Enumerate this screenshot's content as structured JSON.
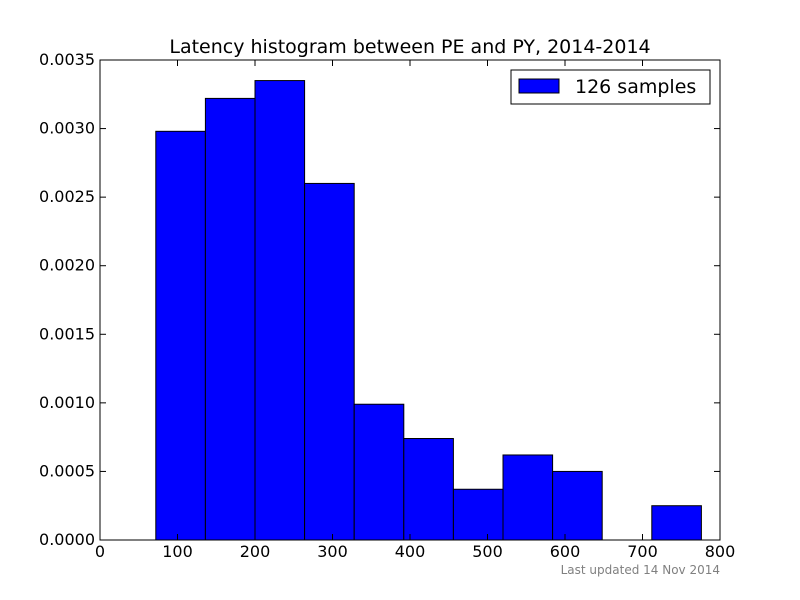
{
  "chart_data": {
    "type": "bar",
    "title": "Latency histogram between PE and PY, 2014-2014",
    "xlabel": "",
    "ylabel": "",
    "xlim": [
      0,
      800
    ],
    "ylim": [
      0,
      0.0035
    ],
    "x_ticks": [
      "0",
      "100",
      "200",
      "300",
      "400",
      "500",
      "600",
      "700",
      "800"
    ],
    "y_ticks": [
      "0.0000",
      "0.0005",
      "0.0010",
      "0.0015",
      "0.0020",
      "0.0025",
      "0.0030",
      "0.0035"
    ],
    "bins": [
      {
        "start": 72,
        "end": 136,
        "value": 0.00298
      },
      {
        "start": 136,
        "end": 200,
        "value": 0.00322
      },
      {
        "start": 200,
        "end": 264,
        "value": 0.00335
      },
      {
        "start": 264,
        "end": 328,
        "value": 0.0026
      },
      {
        "start": 328,
        "end": 392,
        "value": 0.00099
      },
      {
        "start": 392,
        "end": 456,
        "value": 0.00074
      },
      {
        "start": 456,
        "end": 520,
        "value": 0.00037
      },
      {
        "start": 520,
        "end": 584,
        "value": 0.00062
      },
      {
        "start": 584,
        "end": 648,
        "value": 0.0005
      },
      {
        "start": 648,
        "end": 712,
        "value": 0.0
      },
      {
        "start": 712,
        "end": 776,
        "value": 0.00025
      }
    ],
    "series": [
      {
        "name": "126 samples",
        "color": "#0000ff"
      }
    ],
    "legend_position": "top-right",
    "grid": false
  },
  "footer": {
    "text": "Last updated 14 Nov 2014"
  }
}
